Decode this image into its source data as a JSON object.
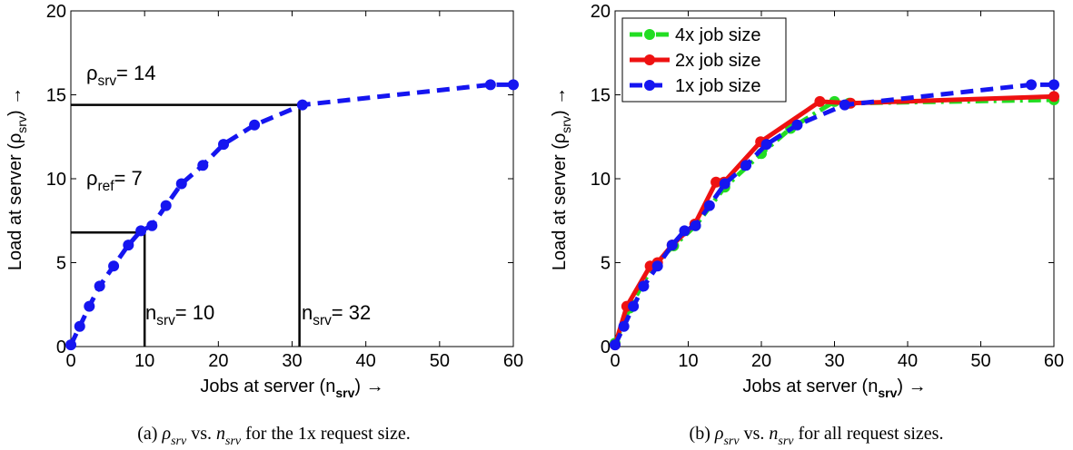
{
  "chart_data": [
    {
      "type": "line",
      "xlabel": [
        "Jobs at server (n",
        "srv",
        ") →"
      ],
      "ylabel": [
        "Load at server (ρ",
        "srv",
        ") →"
      ],
      "xlim": [
        0,
        60
      ],
      "xticks": [
        0,
        10,
        20,
        30,
        40,
        50,
        60
      ],
      "ylim": [
        0,
        20
      ],
      "yticks": [
        0,
        5,
        10,
        15,
        20
      ],
      "series": [
        {
          "color": "#1515f0",
          "linestyle": "dashed",
          "x": [
            0,
            1.2,
            2.5,
            3.9,
            5.8,
            7.8,
            9.5,
            11,
            12.9,
            15,
            17.9,
            20.7,
            24.9,
            31.4,
            56.9,
            60
          ],
          "values": [
            0.1,
            1.2,
            2.4,
            3.6,
            4.8,
            6.05,
            6.9,
            7.2,
            8.4,
            9.7,
            10.8,
            12.05,
            13.2,
            14.4,
            15.6,
            15.6
          ]
        }
      ],
      "guides": [
        {
          "x": 31,
          "y": 14.4
        },
        {
          "x": 10,
          "y": 6.8
        }
      ],
      "annotations": [
        [
          "ρ",
          "srv",
          "= 14"
        ],
        [
          "ρ",
          "ref",
          "= 7"
        ],
        [
          "n",
          "srv",
          "= 10"
        ],
        [
          "n",
          "srv",
          "= 32"
        ]
      ],
      "caption": [
        "(a) ",
        "ρ",
        "srv",
        " vs. ",
        "n",
        "srv",
        " for the 1x request size."
      ]
    },
    {
      "type": "line",
      "xlabel": [
        "Jobs at server (n",
        "srv",
        ") →"
      ],
      "ylabel": [
        "Load at server (ρ",
        "srv",
        ") →"
      ],
      "xlim": [
        0,
        60
      ],
      "xticks": [
        0,
        10,
        20,
        30,
        40,
        50,
        60
      ],
      "ylim": [
        0,
        20
      ],
      "yticks": [
        0,
        5,
        10,
        15,
        20
      ],
      "legend": "upper left",
      "series": [
        {
          "name": "4x job size",
          "color": "#22dd22",
          "linestyle": "dashdot",
          "x": [
            0,
            2,
            5,
            8,
            11,
            15,
            20,
            24,
            30,
            32,
            60
          ],
          "values": [
            0.2,
            2.3,
            4.7,
            6,
            7.2,
            9.5,
            11.5,
            13,
            14.6,
            14.5,
            14.7
          ]
        },
        {
          "name": "2x job size",
          "color": "#ee1111",
          "linestyle": "solid",
          "x": [
            0,
            1.6,
            4.8,
            5.8,
            7.8,
            10.9,
            13.8,
            14.9,
            19.9,
            28,
            32.2,
            60
          ],
          "values": [
            0.1,
            2.4,
            4.8,
            5,
            6.05,
            7.3,
            9.8,
            9.8,
            12.2,
            14.6,
            14.5,
            14.9
          ]
        },
        {
          "name": "1x job size",
          "color": "#1515f0",
          "linestyle": "dashed",
          "x": [
            0,
            1.2,
            2.5,
            3.9,
            5.8,
            7.8,
            9.5,
            11,
            12.9,
            15,
            17.9,
            20.7,
            24.9,
            31.4,
            56.9,
            60
          ],
          "values": [
            0.1,
            1.2,
            2.4,
            3.6,
            4.8,
            6.05,
            6.9,
            7.2,
            8.4,
            9.7,
            10.8,
            12.05,
            13.2,
            14.4,
            15.6,
            15.6
          ]
        }
      ],
      "caption": [
        "(b) ",
        "ρ",
        "srv",
        " vs. ",
        "n",
        "srv",
        " for all request sizes."
      ]
    }
  ]
}
